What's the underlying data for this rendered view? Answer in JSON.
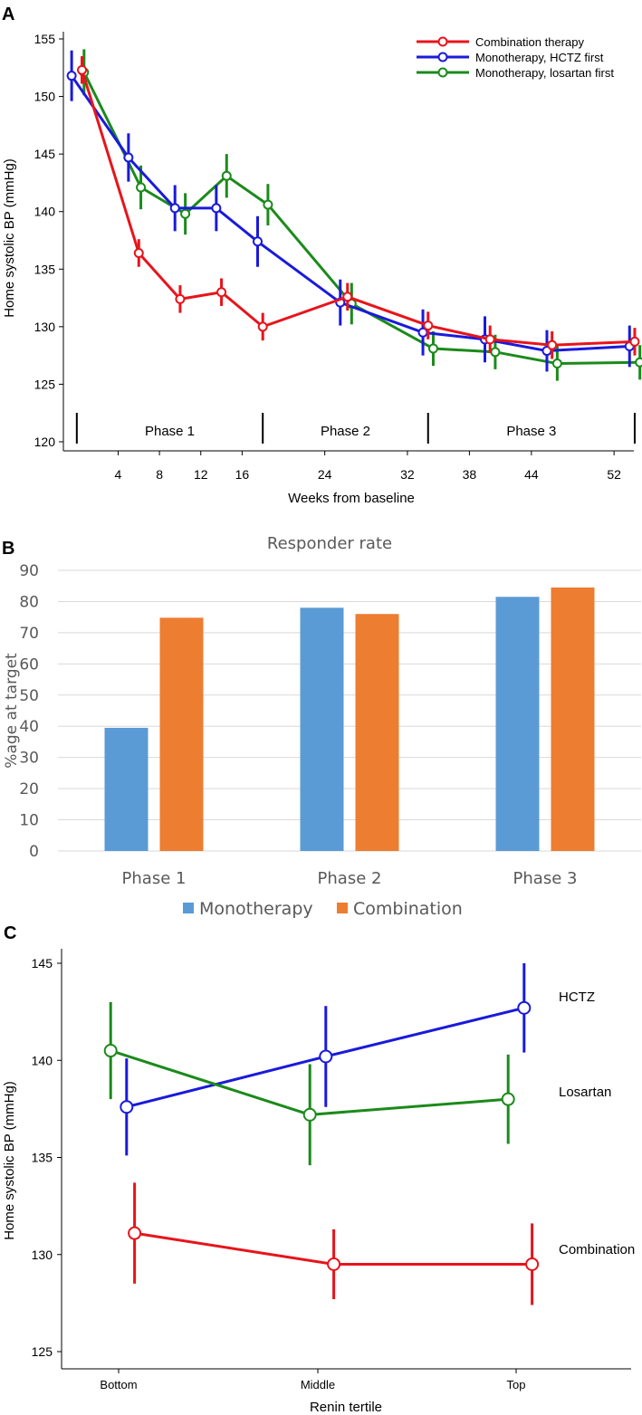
{
  "chart_data": [
    {
      "type": "line",
      "panel_label": "A",
      "xlabel": "Weeks from baseline",
      "ylabel": "Home systolic BP (mmHg)",
      "ylim": [
        120,
        155
      ],
      "xlim": [
        -2,
        56
      ],
      "x_ticks": [
        "4",
        "8",
        "12",
        "16",
        "24",
        "32",
        "38",
        "44",
        "52"
      ],
      "y_ticks": [
        "120",
        "125",
        "130",
        "135",
        "140",
        "145",
        "150",
        "155"
      ],
      "phases": [
        {
          "label": "Phase 1",
          "start": 0,
          "end": 18
        },
        {
          "label": "Phase 2",
          "start": 18,
          "end": 34
        },
        {
          "label": "Phase 3",
          "start": 34,
          "end": 54
        }
      ],
      "legend": [
        "Combination therapy",
        "Monotherapy, HCTZ first",
        "Monotherapy, losartan first"
      ],
      "legend_position": "top-right",
      "series": [
        {
          "name": "Combination therapy",
          "color": "#e8141b",
          "x": [
            0.5,
            6,
            10,
            14,
            18,
            26.2,
            34,
            40,
            46,
            54
          ],
          "values": [
            152.3,
            136.4,
            132.4,
            133.0,
            130.0,
            132.6,
            130.1,
            128.9,
            128.4,
            128.7
          ],
          "errors": [
            1.2,
            1.2,
            1.2,
            1.2,
            1.2,
            1.2,
            1.2,
            1.2,
            1.2,
            1.2
          ]
        },
        {
          "name": "Monotherapy, HCTZ first",
          "color": "#1a1adb",
          "x": [
            -0.5,
            5,
            9.5,
            13.5,
            17.5,
            25.5,
            33.5,
            39.5,
            45.5,
            53.5
          ],
          "values": [
            151.8,
            144.7,
            140.3,
            140.3,
            137.4,
            132.1,
            129.5,
            128.9,
            127.9,
            128.3
          ],
          "errors": [
            2.2,
            2.1,
            2.0,
            2.0,
            2.2,
            2.0,
            2.0,
            2.0,
            1.8,
            1.8
          ]
        },
        {
          "name": "Monotherapy, losartan first",
          "color": "#1b8a1b",
          "x": [
            0.7,
            6.2,
            10.5,
            14.5,
            18.5,
            26.6,
            34.5,
            40.5,
            46.5,
            54.5
          ],
          "values": [
            152.1,
            142.1,
            139.8,
            143.1,
            140.6,
            132.0,
            128.1,
            127.8,
            126.8,
            126.9
          ],
          "errors": [
            2.0,
            1.9,
            1.8,
            1.9,
            1.8,
            1.8,
            1.5,
            1.5,
            1.5,
            1.5
          ]
        }
      ]
    },
    {
      "type": "bar",
      "panel_label": "B",
      "title": "Responder rate",
      "ylabel": "%age at target",
      "ylim": [
        0,
        90
      ],
      "y_ticks": [
        "0",
        "10",
        "20",
        "30",
        "40",
        "50",
        "60",
        "70",
        "80",
        "90"
      ],
      "categories": [
        "Phase 1",
        "Phase 2",
        "Phase 3"
      ],
      "legend_position": "bottom",
      "series": [
        {
          "name": "Monotherapy",
          "color": "#5b9bd5",
          "values": [
            39.5,
            78,
            81.5
          ]
        },
        {
          "name": "Combination",
          "color": "#ed7d31",
          "values": [
            74.8,
            76,
            84.5
          ]
        }
      ]
    },
    {
      "type": "line",
      "panel_label": "C",
      "xlabel": "Renin tertile",
      "ylabel": "Home systolic BP (mmHg)",
      "ylim": [
        124.5,
        145.5
      ],
      "categories": [
        "Bottom",
        "Middle",
        "Top"
      ],
      "y_ticks": [
        "125",
        "130",
        "135",
        "140",
        "145"
      ],
      "series": [
        {
          "name": "HCTZ",
          "color": "#1a1adb",
          "offset": 0.04,
          "values": [
            137.6,
            140.2,
            142.7
          ],
          "errors": [
            2.5,
            2.6,
            2.3
          ]
        },
        {
          "name": "Losartan",
          "color": "#1b8a1b",
          "offset": -0.04,
          "values": [
            140.5,
            137.2,
            138.0
          ],
          "errors": [
            2.5,
            2.6,
            2.3
          ]
        },
        {
          "name": "Combination",
          "color": "#e8141b",
          "offset": 0.08,
          "values": [
            131.1,
            129.5,
            129.5
          ],
          "errors": [
            2.6,
            1.8,
            2.1
          ]
        }
      ]
    }
  ]
}
